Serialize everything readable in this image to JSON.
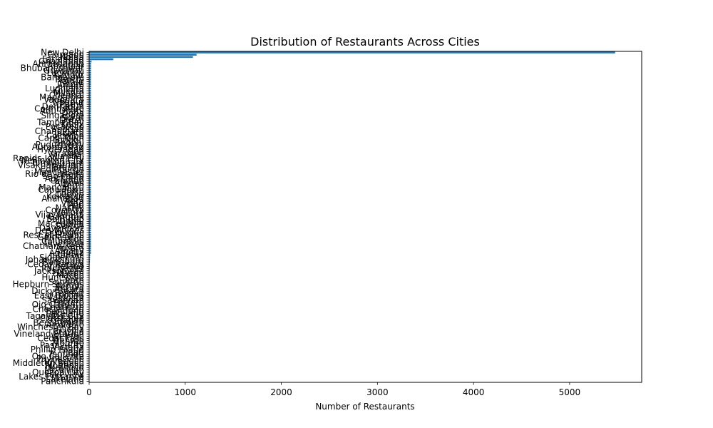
{
  "chart_data": {
    "type": "bar",
    "orientation": "horizontal",
    "title": "Distribution of Restaurants Across Cities",
    "xlabel": "Number of Restaurants",
    "ylabel": "",
    "xlim": [
      0,
      5750
    ],
    "x_ticks": [
      0,
      1000,
      2000,
      3000,
      4000,
      5000
    ],
    "x_tick_labels": [
      "0",
      "1000",
      "2000",
      "3000",
      "4000",
      "5000"
    ],
    "bar_color": "#1f77b4",
    "grid": false,
    "legend": "none",
    "categories": [
      "New Delhi",
      "Gurgaon",
      "Noida",
      "Faridabad",
      "Ghaziabad",
      "Ahmedabad",
      "Amritsar",
      "Bhubaneshwar",
      "Guwahati",
      "Lucknow",
      "Kanpur",
      "Bangalore",
      "Ranchi",
      "Jaipur",
      "Indore",
      "Pune",
      "Ludhiana",
      "Kolkata",
      "Mysore",
      "Chennai",
      "Mangalore",
      "Vadodara",
      "Nagpur",
      "Patna",
      "Dehradun",
      "Coimbatore",
      "Abu Dhabi",
      "Doha",
      "Singapore",
      "Surat",
      "Dubai",
      "Tampa Bay",
      "Kochi",
      "Pocatello",
      "Sharjah",
      "Chandigarh",
      "Jakarta",
      "Colombo",
      "Cape Town",
      "London",
      "Bhopal",
      "Puducherry",
      "Aurangabad",
      "Hyderabad",
      "Goa",
      "Varanasi",
      "Mumbai",
      "Rapids-Iowa City",
      "Wellington City",
      "Birmingham",
      "Visakhapatnam",
      "Brasília",
      "Edinburgh",
      "Manchester",
      "Rio de Janeiro",
      "Sao Paulo",
      "Auckland",
      "Orlando",
      "Athens",
      "Perth",
      "Mangaluru",
      "Cape Town",
      "Boise",
      "Cochin",
      "Kolhapur",
      "Allahabad",
      "Agra",
      "Vizag",
      "Puri",
      "Nashik",
      "Coventry",
      "Vellore",
      "Vijayawada",
      "Gangtok",
      "Balingup",
      "Dubai",
      "Macedonia",
      "Dalton",
      "Davenport",
      "Des Moines",
      "Dubuque",
      "Rest of Hawaii",
      "Gainesville",
      "Princeton",
      "Columbus",
      "Inverloch",
      "Chatham-Kent",
      "Aurora",
      "Albany",
      "Augusta",
      "Istanbul",
      "Sioux Falls",
      "Johannesburg",
      "Randburg",
      "Cedar Rapids",
      "Vineland",
      "Rochester",
      "Jacksonville",
      "Flaxton",
      "Macon",
      "Huntsville",
      "Lorn",
      "Sandton",
      "Hepburn Springs",
      "Penola",
      "Ankara",
      "Dicky Beach",
      "Forrest",
      "East Ballina",
      "Valdosta",
      "Savannah",
      "Potrero",
      "Ojo Caliente",
      "Charlotte",
      "Chesterfield",
      "Bandung",
      "Lakeland",
      "Tagaytay City",
      "Clatskanie",
      "Orlando",
      "Beechworth",
      "Armidale",
      "Winchester Bay",
      "Ocala",
      "Brazilia",
      "Vineland Station",
      "Weirton",
      "Cedar Falls",
      "Trenton",
      "Monroe",
      "Pasay City",
      "Victoria",
      "Phillip Island",
      "Pearl",
      "Tanunda",
      "Ojo Caliente",
      "Paynesville",
      "Inverloch",
      "Middleton Beach",
      "Montville",
      "Mayfield",
      "Mc Millan",
      "Quezon City",
      "Lakeview",
      "Lakes Entrance",
      "Lakeland",
      "Panchkula"
    ],
    "values": [
      5473,
      1118,
      1080,
      251,
      25,
      21,
      21,
      21,
      21,
      21,
      20,
      20,
      20,
      20,
      20,
      20,
      20,
      20,
      20,
      20,
      20,
      20,
      20,
      20,
      20,
      20,
      20,
      20,
      20,
      20,
      20,
      20,
      20,
      20,
      20,
      20,
      20,
      20,
      20,
      20,
      20,
      20,
      20,
      20,
      20,
      20,
      20,
      20,
      20,
      20,
      20,
      20,
      20,
      20,
      20,
      20,
      20,
      20,
      20,
      20,
      20,
      20,
      20,
      20,
      20,
      20,
      20,
      20,
      20,
      20,
      20,
      20,
      20,
      20,
      20,
      20,
      20,
      20,
      20,
      20,
      20,
      20,
      20,
      20,
      20,
      20,
      20,
      20,
      20,
      20,
      11,
      10,
      9,
      8,
      6,
      5,
      5,
      4,
      4,
      4,
      3,
      3,
      3,
      2,
      2,
      2,
      2,
      2,
      2,
      2,
      2,
      2,
      2,
      2,
      1,
      1,
      1,
      1,
      1,
      1,
      1,
      1,
      1,
      1,
      1,
      1,
      1,
      1,
      1,
      1,
      1,
      1,
      1,
      1,
      1,
      1,
      1,
      1,
      1,
      1,
      1,
      1,
      1,
      1,
      1,
      1,
      1
    ]
  }
}
